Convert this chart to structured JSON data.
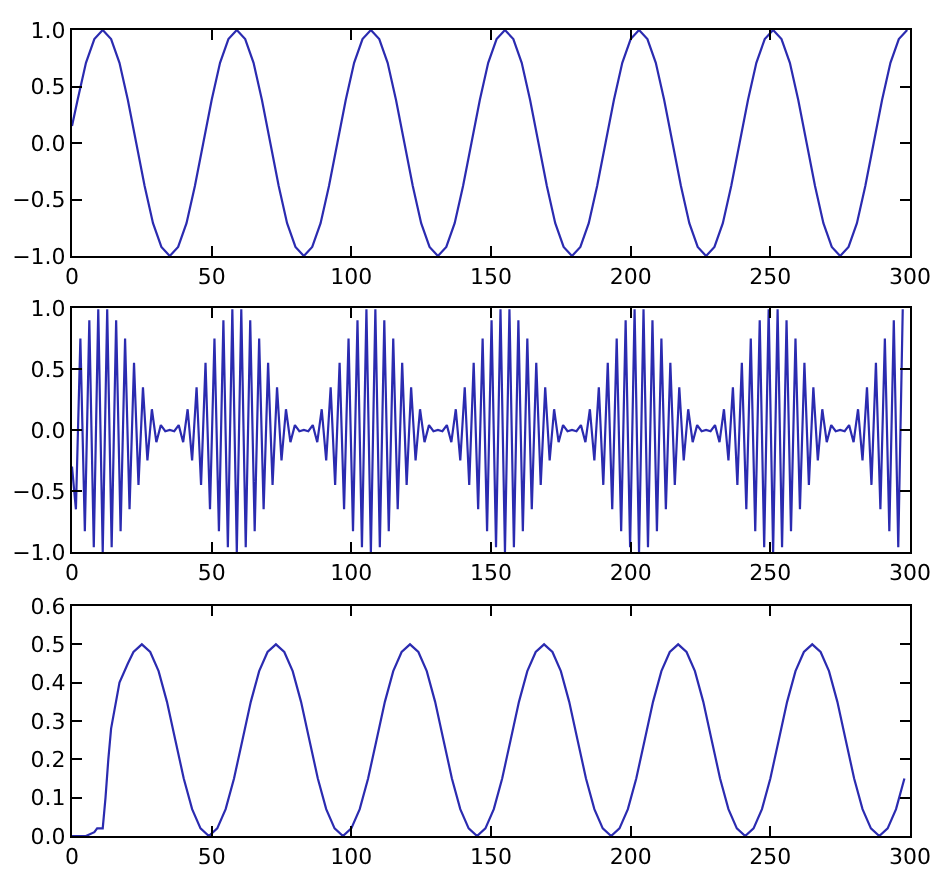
{
  "chart_data": [
    {
      "type": "line",
      "color": "#2b2bb0",
      "xlim": [
        0,
        300
      ],
      "ylim": [
        -1,
        1
      ],
      "xticks": [
        0,
        50,
        100,
        150,
        200,
        250,
        300
      ],
      "yticks": [
        {
          "value": -1,
          "label": "−1.0"
        },
        {
          "value": -0.5,
          "label": "−0.5"
        },
        {
          "value": 0,
          "label": "0.0"
        },
        {
          "value": 0.5,
          "label": "0.5"
        },
        {
          "value": 1,
          "label": "1.0"
        }
      ],
      "x": [
        0,
        2,
        5,
        8,
        11,
        14,
        17,
        20,
        23,
        26,
        29,
        32,
        35,
        38,
        41,
        44,
        47,
        50,
        53,
        56,
        59,
        62,
        65,
        68,
        71,
        74,
        77,
        80,
        83,
        86,
        89,
        92,
        95,
        98,
        101,
        104,
        107,
        110,
        113,
        116,
        119,
        122,
        125,
        128,
        131,
        134,
        137,
        140,
        143,
        146,
        149,
        152,
        155,
        158,
        161,
        164,
        167,
        170,
        173,
        176,
        179,
        182,
        185,
        188,
        191,
        194,
        197,
        200,
        203,
        206,
        209,
        212,
        215,
        218,
        221,
        224,
        227,
        230,
        233,
        236,
        239,
        242,
        245,
        248,
        251,
        254,
        257,
        260,
        263,
        266,
        269,
        272,
        275,
        278,
        281,
        284,
        287,
        290,
        293,
        296,
        299
      ],
      "values": [
        0.15,
        0.38,
        0.71,
        0.92,
        1,
        0.92,
        0.71,
        0.38,
        0,
        -0.38,
        -0.71,
        -0.92,
        -1,
        -0.92,
        -0.71,
        -0.38,
        0,
        0.38,
        0.71,
        0.92,
        1,
        0.92,
        0.71,
        0.38,
        0,
        -0.38,
        -0.71,
        -0.92,
        -1,
        -0.92,
        -0.71,
        -0.38,
        0,
        0.38,
        0.71,
        0.92,
        1,
        0.92,
        0.71,
        0.38,
        0,
        -0.38,
        -0.71,
        -0.92,
        -1,
        -0.92,
        -0.71,
        -0.38,
        0,
        0.38,
        0.71,
        0.92,
        1,
        0.92,
        0.71,
        0.38,
        0,
        -0.38,
        -0.71,
        -0.92,
        -1,
        -0.92,
        -0.71,
        -0.38,
        0,
        0.38,
        0.71,
        0.92,
        1,
        0.92,
        0.71,
        0.38,
        0,
        -0.38,
        -0.71,
        -0.92,
        -1,
        -0.92,
        -0.71,
        -0.38,
        0,
        0.38,
        0.71,
        0.92,
        1,
        0.92,
        0.71,
        0.38,
        0,
        -0.38,
        -0.71,
        -0.92,
        -1,
        -0.92,
        -0.71,
        -0.38,
        0,
        0.38,
        0.71,
        0.92,
        1
      ]
    },
    {
      "type": "line",
      "color": "#2b2bb0",
      "xlim": [
        0,
        300
      ],
      "ylim": [
        -1,
        1
      ],
      "xticks": [
        0,
        50,
        100,
        150,
        200,
        250,
        300
      ],
      "yticks": [
        {
          "value": -1,
          "label": "−1.0"
        },
        {
          "value": -0.5,
          "label": "−0.5"
        },
        {
          "value": 0,
          "label": "0.0"
        },
        {
          "value": 0.5,
          "label": "0.5"
        },
        {
          "value": 1,
          "label": "1.0"
        }
      ],
      "x": [
        0,
        1.4,
        3,
        4.6,
        6.2,
        7.8,
        9.4,
        11,
        12.6,
        14.2,
        15.8,
        17.4,
        19,
        20.6,
        22.2,
        23.8,
        25.4,
        27,
        28.6,
        30.2,
        31.8,
        33.4,
        35,
        36.6,
        38.2,
        39.8,
        41.4,
        43,
        44.6,
        46.2,
        47.8,
        49.4,
        51,
        52.6,
        54.2,
        55.8,
        57.4,
        59,
        60.6,
        62.2,
        63.8,
        65.4,
        67,
        68.6,
        70.2,
        71.8,
        73.4,
        75,
        76.6,
        78.2,
        79.8,
        81.4,
        83,
        84.6,
        86.2,
        87.8,
        89.4,
        91,
        92.6,
        94.2,
        95.8,
        97.4,
        99,
        100.6,
        102.2,
        103.8,
        105.4,
        107,
        108.6,
        110.2,
        111.8,
        113.4,
        115,
        116.6,
        118.2,
        119.8,
        121.4,
        123,
        124.6,
        126.2,
        127.8,
        129.4,
        131,
        132.6,
        134.2,
        135.8,
        137.4,
        139,
        140.6,
        142.2,
        143.8,
        145.4,
        147,
        148.6,
        150.2,
        151.8,
        153.4,
        155,
        156.6,
        158.2,
        159.8,
        161.4,
        163,
        164.6,
        166.2,
        167.8,
        169.4,
        171,
        172.6,
        174.2,
        175.8,
        177.4,
        179,
        180.6,
        182.2,
        183.8,
        185.4,
        187,
        188.6,
        190.2,
        191.8,
        193.4,
        195,
        196.6,
        198.2,
        199.8,
        201.4,
        203,
        204.6,
        206.2,
        207.8,
        209.4,
        211,
        212.6,
        214.2,
        215.8,
        217.4,
        219,
        220.6,
        222.2,
        223.8,
        225.4,
        227,
        228.6,
        230.2,
        231.8,
        233.4,
        235,
        236.6,
        238.2,
        239.8,
        241.4,
        243,
        244.6,
        246.2,
        247.8,
        249.4,
        251,
        252.6,
        254.2,
        255.8,
        257.4,
        259,
        260.6,
        262.2,
        263.8,
        265.4,
        267,
        268.6,
        270.2,
        271.8,
        273.4,
        275,
        276.6,
        278.2,
        279.8,
        281.4,
        283,
        284.6,
        286.2,
        287.8,
        289.4,
        291,
        292.6,
        294.2,
        295.8,
        297.4
      ],
      "values": [
        -0.3,
        -0.65,
        0.75,
        -0.83,
        0.9,
        -0.96,
        0.99,
        -1,
        0.99,
        -0.96,
        0.9,
        -0.83,
        0.75,
        -0.65,
        0.55,
        -0.45,
        0.35,
        -0.25,
        0.17,
        -0.1,
        0.04,
        -0.01,
        0,
        -0.01,
        0.04,
        -0.1,
        0.17,
        -0.25,
        0.35,
        -0.45,
        0.55,
        -0.65,
        0.75,
        -0.83,
        0.9,
        -0.96,
        0.99,
        -1,
        0.99,
        -0.96,
        0.9,
        -0.83,
        0.75,
        -0.65,
        0.55,
        -0.45,
        0.35,
        -0.25,
        0.17,
        -0.1,
        0.04,
        -0.01,
        0,
        -0.01,
        0.04,
        -0.1,
        0.17,
        -0.25,
        0.35,
        -0.45,
        0.55,
        -0.65,
        0.75,
        -0.83,
        0.9,
        -0.96,
        0.99,
        -1,
        0.99,
        -0.96,
        0.9,
        -0.83,
        0.75,
        -0.65,
        0.55,
        -0.45,
        0.35,
        -0.25,
        0.17,
        -0.1,
        0.04,
        -0.01,
        0,
        -0.01,
        0.04,
        -0.1,
        0.17,
        -0.25,
        0.35,
        -0.45,
        0.55,
        -0.65,
        0.75,
        -0.83,
        0.9,
        -0.96,
        0.99,
        -1,
        0.99,
        -0.96,
        0.9,
        -0.83,
        0.75,
        -0.65,
        0.55,
        -0.45,
        0.35,
        -0.25,
        0.17,
        -0.1,
        0.04,
        -0.01,
        0,
        -0.01,
        0.04,
        -0.1,
        0.17,
        -0.25,
        0.35,
        -0.45,
        0.55,
        -0.65,
        0.75,
        -0.83,
        0.9,
        -0.96,
        0.99,
        -1,
        0.99,
        -0.96,
        0.9,
        -0.83,
        0.75,
        -0.65,
        0.55,
        -0.45,
        0.35,
        -0.25,
        0.17,
        -0.1,
        0.04,
        -0.01,
        0,
        -0.01,
        0.04,
        -0.1,
        0.17,
        -0.25,
        0.35,
        -0.45,
        0.55,
        -0.65,
        0.75,
        -0.83,
        0.9,
        -0.96,
        0.99,
        -1,
        0.99,
        -0.96,
        0.9,
        -0.83,
        0.75,
        -0.65,
        0.55,
        -0.45,
        0.35,
        -0.25,
        0.17,
        -0.1,
        0.04,
        -0.01,
        0,
        -0.01,
        0.04,
        -0.1,
        0.17,
        -0.25,
        0.35,
        -0.45,
        0.55,
        -0.65,
        0.75,
        -0.83,
        0.9,
        -0.96,
        0.99
      ]
    },
    {
      "type": "line",
      "color": "#2b2bb0",
      "xlim": [
        0,
        300
      ],
      "ylim": [
        0,
        0.6
      ],
      "xticks": [
        0,
        50,
        100,
        150,
        200,
        250,
        300
      ],
      "yticks": [
        {
          "value": 0,
          "label": "0.0"
        },
        {
          "value": 0.1,
          "label": "0.1"
        },
        {
          "value": 0.2,
          "label": "0.2"
        },
        {
          "value": 0.3,
          "label": "0.3"
        },
        {
          "value": 0.4,
          "label": "0.4"
        },
        {
          "value": 0.5,
          "label": "0.5"
        },
        {
          "value": 0.6,
          "label": "0.6"
        }
      ],
      "x": [
        0,
        5,
        8,
        9,
        10,
        11,
        12,
        13,
        14,
        17,
        20,
        22,
        25,
        28,
        31,
        34,
        37,
        40,
        43,
        46,
        49,
        52,
        55,
        58,
        61,
        64,
        67,
        70,
        73,
        76,
        79,
        82,
        85,
        88,
        91,
        94,
        97,
        100,
        103,
        106,
        109,
        112,
        115,
        118,
        121,
        124,
        127,
        130,
        133,
        136,
        139,
        142,
        145,
        148,
        151,
        154,
        157,
        160,
        163,
        166,
        169,
        172,
        175,
        178,
        181,
        184,
        187,
        190,
        193,
        196,
        199,
        202,
        205,
        208,
        211,
        214,
        217,
        220,
        223,
        226,
        229,
        232,
        235,
        238,
        241,
        244,
        247,
        250,
        253,
        256,
        259,
        262,
        265,
        268,
        271,
        274,
        277,
        280,
        283,
        286,
        289,
        292,
        295,
        298
      ],
      "values": [
        0,
        0,
        0.01,
        0.02,
        0.02,
        0.02,
        0.1,
        0.2,
        0.28,
        0.4,
        0.45,
        0.48,
        0.5,
        0.48,
        0.43,
        0.35,
        0.25,
        0.15,
        0.07,
        0.02,
        0,
        0.02,
        0.07,
        0.15,
        0.25,
        0.35,
        0.43,
        0.48,
        0.5,
        0.48,
        0.43,
        0.35,
        0.25,
        0.15,
        0.07,
        0.02,
        0,
        0.02,
        0.07,
        0.15,
        0.25,
        0.35,
        0.43,
        0.48,
        0.5,
        0.48,
        0.43,
        0.35,
        0.25,
        0.15,
        0.07,
        0.02,
        0,
        0.02,
        0.07,
        0.15,
        0.25,
        0.35,
        0.43,
        0.48,
        0.5,
        0.48,
        0.43,
        0.35,
        0.25,
        0.15,
        0.07,
        0.02,
        0,
        0.02,
        0.07,
        0.15,
        0.25,
        0.35,
        0.43,
        0.48,
        0.5,
        0.48,
        0.43,
        0.35,
        0.25,
        0.15,
        0.07,
        0.02,
        0,
        0.02,
        0.07,
        0.15,
        0.25,
        0.35,
        0.43,
        0.48,
        0.5,
        0.48,
        0.43,
        0.35,
        0.25,
        0.15,
        0.07,
        0.02,
        0,
        0.02,
        0.07,
        0.15
      ]
    }
  ]
}
